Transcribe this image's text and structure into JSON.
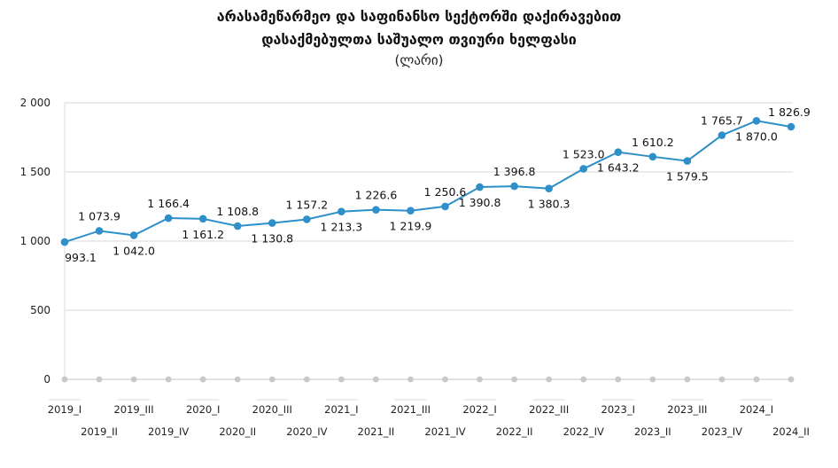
{
  "title_line1": "არასამეწარმეო და საფინანსო სექტორში დაქირავებით",
  "title_line2": "დასაქმებულთა საშუალო თვიური ხელფასი",
  "unit": "(ლარი)",
  "colors": {
    "series": "#2e8fc9",
    "grid": "#d9d9d9",
    "axis_dot": "#c8c8c8"
  },
  "chart_data": {
    "type": "line",
    "title": "არასამეწარმეო და საფინანსო სექტორში დაქირავებით დასაქმებულთა საშუალო თვიური ხელფასი",
    "ylabel": "(ლარი)",
    "ylim": [
      0,
      2000
    ],
    "yticks": [
      0,
      500,
      1000,
      1500,
      2000
    ],
    "ytick_labels": [
      "0",
      "500",
      "1 000",
      "1 500",
      "2 000"
    ],
    "grid": true,
    "categories": [
      "2019_I",
      "2019_II",
      "2019_III",
      "2019_IV",
      "2020_I",
      "2020_II",
      "2020_III",
      "2020_IV",
      "2021_I",
      "2021_II",
      "2021_III",
      "2021_IV",
      "2022_I",
      "2022_II",
      "2022_III",
      "2022_IV",
      "2023_I",
      "2023_II",
      "2023_III",
      "2023_IV",
      "2024_I",
      "2024_II"
    ],
    "values": [
      993.1,
      1073.9,
      1042.0,
      1166.4,
      1161.2,
      1108.8,
      1130.8,
      1157.2,
      1213.3,
      1226.6,
      1219.9,
      1250.6,
      1390.8,
      1396.8,
      1380.3,
      1523.0,
      1643.2,
      1610.2,
      1579.5,
      1765.7,
      1870.0,
      1826.9
    ],
    "value_labels": [
      "993.1",
      "1 073.9",
      "1 042.0",
      "1 166.4",
      "1 161.2",
      "1 108.8",
      "1 130.8",
      "1 157.2",
      "1 213.3",
      "1 226.6",
      "1 219.9",
      "1 250.6",
      "1 390.8",
      "1 396.8",
      "1 380.3",
      "1 523.0",
      "1 643.2",
      "1 610.2",
      "1 579.5",
      "1 765.7",
      "1 870.0",
      "1 826.9"
    ],
    "label_positions": [
      "below",
      "above",
      "below",
      "above",
      "below",
      "above",
      "below",
      "above",
      "below",
      "above",
      "below",
      "above",
      "below",
      "above",
      "below",
      "above",
      "below",
      "above",
      "below",
      "above",
      "below",
      "above"
    ]
  }
}
